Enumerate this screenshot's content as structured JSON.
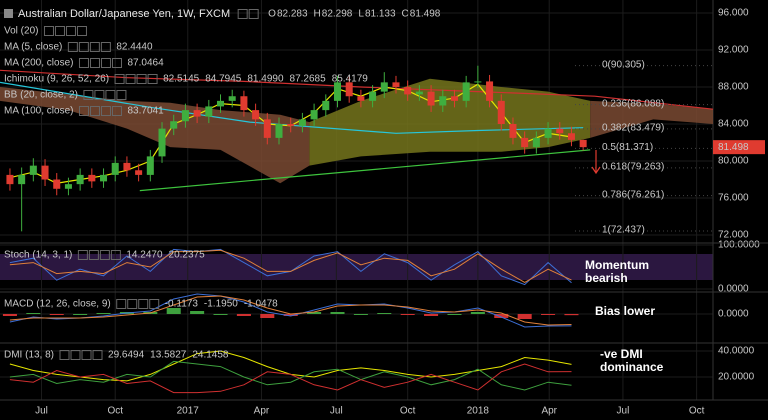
{
  "chart_data": [
    {
      "type": "candlestick",
      "title": "Australian Dollar/Japanese Yen, 1W, FXCM",
      "ohlc_prefixes": [
        "O",
        "H",
        "L",
        "C"
      ],
      "ohlc_color": "#f5a623",
      "open": [
        78.5,
        77.5,
        78.5,
        79.5,
        78.0,
        77.0,
        77.5,
        78.5,
        77.8,
        78.5,
        79.8,
        79.0,
        78.5,
        80.5,
        83.5,
        84.3,
        85.5,
        84.8,
        85.9,
        86.5,
        87.0,
        85.5,
        84.5,
        82.5,
        84.0,
        83.8,
        84.5,
        85.5,
        86.5,
        88.5,
        87.0,
        86.5,
        87.5,
        88.5,
        88.0,
        87.2,
        87.5,
        86.0,
        87.0,
        86.5,
        88.5,
        88.6,
        86.5,
        84.0,
        82.5,
        81.5,
        82.5,
        83.5,
        83.0,
        82.283
      ],
      "high": [
        79.2,
        79.3,
        80.3,
        80.2,
        78.7,
        78.2,
        79.2,
        79.2,
        79.2,
        80.5,
        80.5,
        79.7,
        81.2,
        84.2,
        85.0,
        86.2,
        86.2,
        86.6,
        87.2,
        87.7,
        87.6,
        86.2,
        85.2,
        84.7,
        84.7,
        85.2,
        86.2,
        87.2,
        89.2,
        89.1,
        87.7,
        88.2,
        89.6,
        89.2,
        88.7,
        88.2,
        88.2,
        87.7,
        87.7,
        89.2,
        90.3,
        89.3,
        87.2,
        84.7,
        83.2,
        83.2,
        84.2,
        84.2,
        83.7,
        82.298
      ],
      "low": [
        76.8,
        72.4,
        77.8,
        77.3,
        76.3,
        76.3,
        76.8,
        77.1,
        77.1,
        77.8,
        78.3,
        77.8,
        77.8,
        79.8,
        82.8,
        83.6,
        84.1,
        84.1,
        85.2,
        85.8,
        84.8,
        83.8,
        81.8,
        81.8,
        83.1,
        83.1,
        83.8,
        84.8,
        85.8,
        86.3,
        85.8,
        85.8,
        86.8,
        87.3,
        86.5,
        86.5,
        85.3,
        85.3,
        85.8,
        85.8,
        87.9,
        85.8,
        83.3,
        81.8,
        80.8,
        80.8,
        81.8,
        82.3,
        81.6,
        81.133
      ],
      "close": [
        77.5,
        78.5,
        79.5,
        78.0,
        77.0,
        77.5,
        78.5,
        77.8,
        78.5,
        79.8,
        79.0,
        78.5,
        80.5,
        83.5,
        84.3,
        85.5,
        84.8,
        85.9,
        86.5,
        87.0,
        85.5,
        84.5,
        82.5,
        84.0,
        83.8,
        84.5,
        85.5,
        86.5,
        88.5,
        87.0,
        86.5,
        87.5,
        88.5,
        88.0,
        87.2,
        87.5,
        86.0,
        87.0,
        86.5,
        88.5,
        88.6,
        86.5,
        84.0,
        82.5,
        81.5,
        82.5,
        83.5,
        83.0,
        82.283,
        81.498
      ],
      "up_color": "#3fae3f",
      "down_color": "#e03b30",
      "xlim": [
        -0.85,
        60.1
      ],
      "xticks": [
        {
          "value": 2.7,
          "label": "Jul"
        },
        {
          "value": 9.0,
          "label": "Oct"
        },
        {
          "value": 15.2,
          "label": "2017"
        },
        {
          "value": 21.5,
          "label": "Apr"
        },
        {
          "value": 27.9,
          "label": "Jul"
        },
        {
          "value": 34.0,
          "label": "Oct"
        },
        {
          "value": 40.0,
          "label": "2018"
        },
        {
          "value": 46.1,
          "label": "Apr"
        },
        {
          "value": 52.4,
          "label": "Jul"
        },
        {
          "value": 58.7,
          "label": "Oct"
        }
      ],
      "ylim": [
        71.14,
        97.4
      ],
      "yticks": [
        {
          "value": 96,
          "label": "96.000"
        },
        {
          "value": 92,
          "label": "92.000"
        },
        {
          "value": 88,
          "label": "88.000"
        },
        {
          "value": 84,
          "label": "84.000"
        },
        {
          "value": 80,
          "label": "80.000"
        },
        {
          "value": 76,
          "label": "76.000"
        },
        {
          "value": 72,
          "label": "72.000"
        }
      ],
      "grid": true,
      "legend": [
        {
          "name": "Vol (20)"
        },
        {
          "name": "MA (5, close)",
          "readings": [
            {
              "text": "82.4440",
              "color": "#e6e600"
            }
          ]
        },
        {
          "name": "MA (200, close)",
          "readings": [
            {
              "text": "87.0464",
              "color": "#d03030"
            }
          ]
        },
        {
          "name": "Ichimoku (9, 26, 52, 26)",
          "readings": [
            {
              "text": "82.5145",
              "color": "#2f7fd6"
            },
            {
              "text": "84.7945",
              "color": "#c0392b"
            },
            {
              "text": "81.4990",
              "color": "#3e9e3e"
            },
            {
              "text": "87.2685",
              "color": "#c94f3a"
            },
            {
              "text": "85.4179",
              "color": "#c94f3a"
            }
          ]
        },
        {
          "name": "BB (20, close, 2)"
        },
        {
          "name": "MA (100, close)",
          "readings": [
            {
              "text": "83.7041",
              "color": "#26c6da"
            }
          ]
        }
      ],
      "clouds": [
        {
          "x": [
            -0.85,
            5,
            10,
            13.7,
            18,
            23.1,
            25.6
          ],
          "top": [
            88,
            87.2,
            86.5,
            86.3,
            85.5,
            85.0,
            84.2
          ],
          "bottom": [
            86.5,
            85.5,
            83.5,
            81.5,
            81.2,
            77.6,
            79.5
          ],
          "color": "#7a4a32"
        },
        {
          "x": [
            25.6,
            30,
            35.9,
            42,
            46,
            49.6
          ],
          "top": [
            84.2,
            86.5,
            88.9,
            88.0,
            87.5,
            86.5
          ],
          "bottom": [
            79.5,
            80.5,
            81.0,
            81.0,
            81.5,
            82.5
          ],
          "color": "#76761c"
        },
        {
          "x": [
            49.6,
            55,
            60.1
          ],
          "top": [
            86.5,
            86.2,
            85.6
          ],
          "bottom": [
            82.5,
            84.5,
            84.0
          ],
          "color": "#7a4a32"
        }
      ],
      "lines": [
        {
          "x": [
            -0.85,
            10,
            20,
            30,
            40,
            50,
            60.1
          ],
          "values": [
            89.8,
            89.0,
            88.6,
            88.0,
            87.5,
            87.0,
            85.6
          ],
          "color": "#d03030"
        },
        {
          "x": [
            -0.85,
            12,
            20.5,
            33,
            40,
            49
          ],
          "values": [
            88.5,
            85.8,
            84.2,
            83.0,
            83.3,
            83.6
          ],
          "color": "#26c6da"
        },
        {
          "x": [
            0,
            2,
            4,
            6,
            8,
            10,
            12,
            14,
            16,
            18,
            20,
            22,
            24,
            26,
            28,
            30,
            32,
            34,
            36,
            38,
            40,
            42,
            44,
            46,
            48
          ],
          "values": [
            78.2,
            78.8,
            77.6,
            78.0,
            78.4,
            79.0,
            80.0,
            84.0,
            85.0,
            86.2,
            86.0,
            84.0,
            83.8,
            85.2,
            87.8,
            87.0,
            88.0,
            87.6,
            86.4,
            86.8,
            88.3,
            85.2,
            82.0,
            83.0,
            82.6
          ],
          "color": "#e6e600"
        },
        {
          "x": [
            11.1,
            49.6
          ],
          "values": [
            76.8,
            81.2
          ],
          "color": "#3ec43e"
        }
      ],
      "fib_levels": [
        {
          "label": "0(90.305)",
          "value": 90.305
        },
        {
          "label": "0.236(86.088)",
          "value": 86.088
        },
        {
          "label": "0.382(83.479)",
          "value": 83.479
        },
        {
          "label": "0.5(81.371)",
          "value": 81.371
        },
        {
          "label": "0.618(79.263)",
          "value": 79.263
        },
        {
          "label": "0.786(76.261)",
          "value": 76.261
        },
        {
          "label": "1(72.437)",
          "value": 72.437
        }
      ],
      "fib_color": "#b8b8b8",
      "price_tag_color": "#e03b30"
    },
    {
      "type": "line",
      "title": "Stoch (14, 3, 1)",
      "readings": [
        "14.2470",
        "20.2375"
      ],
      "x": [
        0,
        2,
        4,
        6,
        8,
        10,
        12,
        14,
        16,
        18,
        20,
        22,
        24,
        26,
        28,
        30,
        32,
        34,
        36,
        38,
        40,
        42,
        44,
        46,
        48
      ],
      "series": [
        {
          "color": "#3d6fd6",
          "values": [
            60,
            70,
            20,
            45,
            30,
            75,
            40,
            90,
            85,
            90,
            60,
            30,
            40,
            75,
            85,
            40,
            80,
            60,
            20,
            55,
            85,
            30,
            10,
            60,
            14.247
          ]
        },
        {
          "color": "#e0803a",
          "values": [
            55,
            60,
            35,
            40,
            35,
            60,
            50,
            85,
            85,
            88,
            70,
            40,
            40,
            65,
            82,
            55,
            70,
            65,
            30,
            45,
            80,
            45,
            15,
            45,
            20.2375
          ]
        }
      ],
      "ylim": [
        -6.8,
        104.5
      ],
      "yticks": [
        {
          "value": 100,
          "label": "100.0000"
        },
        {
          "value": 0,
          "label": "0.0000"
        }
      ],
      "annotation": [
        "Momentum",
        "bearish"
      ]
    },
    {
      "type": "line",
      "title": "MACD (12, 26, close, 9)",
      "readings": [
        "-0.1173",
        "-1.1950",
        "-1.0478"
      ],
      "x": [
        0,
        2,
        4,
        6,
        8,
        10,
        12,
        14,
        16,
        18,
        20,
        22,
        24,
        26,
        28,
        30,
        32,
        34,
        36,
        38,
        40,
        42,
        44,
        46,
        48
      ],
      "series": [
        {
          "style": "bar",
          "color": "#d03030",
          "up_color": "#3ea03e",
          "values": [
            -0.2,
            0.1,
            -0.1,
            0,
            0.1,
            0.2,
            0.2,
            0.6,
            0.3,
            0,
            -0.2,
            -0.4,
            -0.2,
            0.2,
            0.2,
            0,
            0.1,
            -0.1,
            -0.2,
            0,
            0.2,
            -0.4,
            -0.5,
            -0.1,
            -0.1173
          ]
        },
        {
          "color": "#3d6fd6",
          "values": [
            -0.8,
            -0.3,
            -0.5,
            -0.4,
            -0.2,
            0.1,
            0.3,
            1.5,
            2.0,
            1.8,
            1.2,
            0.2,
            -0.2,
            0.4,
            1.0,
            0.9,
            1.0,
            0.6,
            0.1,
            0.2,
            0.6,
            -0.3,
            -1.3,
            -1.2,
            -1.195
          ]
        },
        {
          "color": "#e0803a",
          "values": [
            -0.6,
            -0.4,
            -0.4,
            -0.4,
            -0.3,
            -0.1,
            0.1,
            0.9,
            1.7,
            1.8,
            1.4,
            0.6,
            0.0,
            0.2,
            0.8,
            0.9,
            0.9,
            0.7,
            0.3,
            0.2,
            0.4,
            0.1,
            -0.8,
            -1.1,
            -1.0478
          ]
        }
      ],
      "ylim": [
        -2.9,
        2.2
      ],
      "yticks": [
        {
          "value": 0,
          "label": "0.0000"
        }
      ],
      "annotation": [
        "Bias lower"
      ]
    },
    {
      "type": "line",
      "title": "DMI (13, 8)",
      "readings": [
        "29.6494",
        "13.5827",
        "24.1458"
      ],
      "x": [
        0,
        2,
        4,
        6,
        8,
        10,
        12,
        14,
        16,
        18,
        20,
        22,
        24,
        26,
        28,
        30,
        32,
        34,
        36,
        38,
        40,
        42,
        44,
        46,
        48
      ],
      "series": [
        {
          "color": "#e6e600",
          "values": [
            30,
            25,
            22,
            20,
            18,
            17,
            22,
            30,
            38,
            40,
            35,
            28,
            22,
            20,
            25,
            27,
            25,
            22,
            20,
            22,
            25,
            28,
            35,
            33,
            29.6494
          ]
        },
        {
          "color": "#3ea03e",
          "values": [
            20,
            22,
            15,
            18,
            16,
            22,
            20,
            32,
            30,
            28,
            20,
            14,
            16,
            24,
            26,
            18,
            24,
            20,
            14,
            18,
            26,
            14,
            10,
            16,
            13.5827
          ]
        },
        {
          "color": "#d03030",
          "values": [
            18,
            16,
            25,
            20,
            22,
            15,
            17,
            8,
            8,
            9,
            14,
            24,
            22,
            14,
            10,
            18,
            12,
            16,
            22,
            16,
            10,
            24,
            30,
            24,
            24.1458
          ]
        }
      ],
      "ylim": [
        2.3,
        46.15
      ],
      "yticks": [
        {
          "value": 40,
          "label": "40.0000"
        },
        {
          "value": 20,
          "label": "20.0000"
        }
      ],
      "annotation": [
        "-ve DMI",
        "dominance"
      ]
    }
  ]
}
